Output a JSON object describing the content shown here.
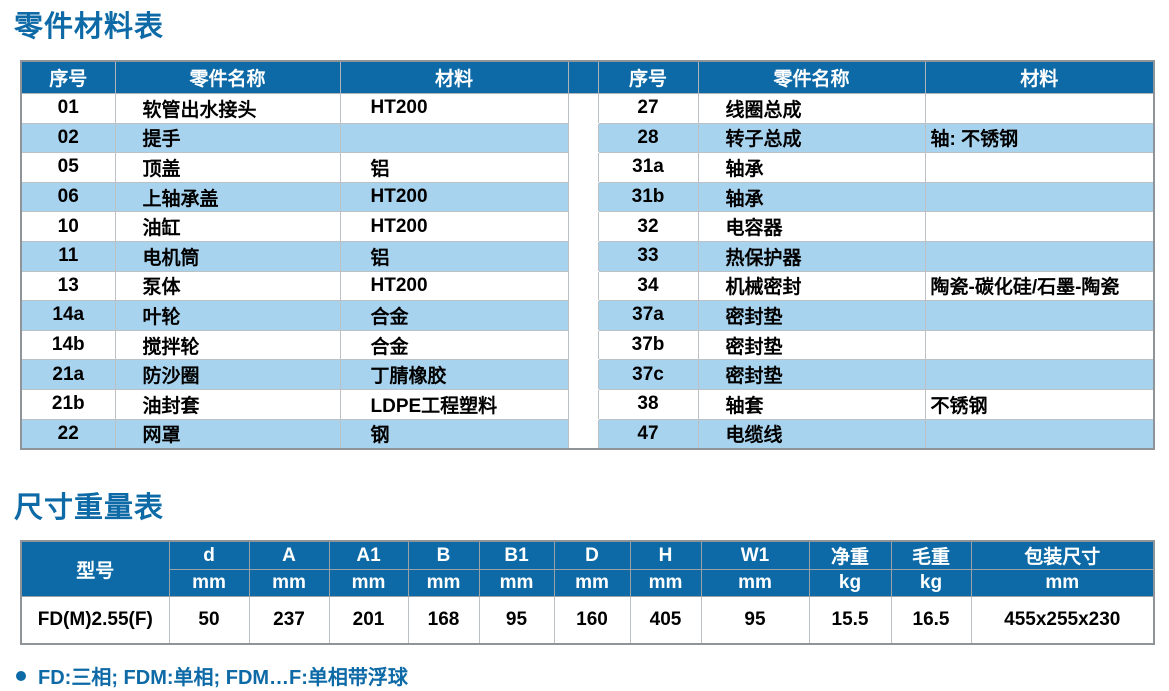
{
  "colors": {
    "accent_blue": "#0d6aa6",
    "stripe_blue": "#a8d3ee",
    "header_text": "#ffffff",
    "body_text": "#000000"
  },
  "parts_table": {
    "title": "零件材料表",
    "headers": {
      "no": "序号",
      "name": "零件名称",
      "material": "材料"
    },
    "left_rows": [
      {
        "no": "01",
        "name": "软管出水接头",
        "material": "HT200"
      },
      {
        "no": "02",
        "name": "提手",
        "material": ""
      },
      {
        "no": "05",
        "name": "顶盖",
        "material": "铝"
      },
      {
        "no": "06",
        "name": "上轴承盖",
        "material": "HT200"
      },
      {
        "no": "10",
        "name": "油缸",
        "material": "HT200"
      },
      {
        "no": "11",
        "name": "电机筒",
        "material": "铝"
      },
      {
        "no": "13",
        "name": "泵体",
        "material": "HT200"
      },
      {
        "no": "14a",
        "name": "叶轮",
        "material": "合金"
      },
      {
        "no": "14b",
        "name": "搅拌轮",
        "material": "合金"
      },
      {
        "no": "21a",
        "name": "防沙圈",
        "material": "丁腈橡胶"
      },
      {
        "no": "21b",
        "name": "油封套",
        "material": "LDPE工程塑料"
      },
      {
        "no": "22",
        "name": "网罩",
        "material": "钢"
      }
    ],
    "right_rows": [
      {
        "no": "27",
        "name": "线圈总成",
        "material": ""
      },
      {
        "no": "28",
        "name": "转子总成",
        "material": "轴: 不锈钢"
      },
      {
        "no": "31a",
        "name": "轴承",
        "material": ""
      },
      {
        "no": "31b",
        "name": "轴承",
        "material": ""
      },
      {
        "no": "32",
        "name": "电容器",
        "material": ""
      },
      {
        "no": "33",
        "name": "热保护器",
        "material": ""
      },
      {
        "no": "34",
        "name": "机械密封",
        "material": "陶瓷-碳化硅/石墨-陶瓷"
      },
      {
        "no": "37a",
        "name": "密封垫",
        "material": ""
      },
      {
        "no": "37b",
        "name": "密封垫",
        "material": ""
      },
      {
        "no": "37c",
        "name": "密封垫",
        "material": ""
      },
      {
        "no": "38",
        "name": "轴套",
        "material": "不锈钢"
      },
      {
        "no": "47",
        "name": "电缆线",
        "material": ""
      }
    ]
  },
  "dims_table": {
    "title": "尺寸重量表",
    "model_header": "型号",
    "columns": [
      {
        "label": "d",
        "unit": "mm"
      },
      {
        "label": "A",
        "unit": "mm"
      },
      {
        "label": "A1",
        "unit": "mm"
      },
      {
        "label": "B",
        "unit": "mm"
      },
      {
        "label": "B1",
        "unit": "mm"
      },
      {
        "label": "D",
        "unit": "mm"
      },
      {
        "label": "H",
        "unit": "mm"
      },
      {
        "label": "W1",
        "unit": "mm"
      },
      {
        "label": "净重",
        "unit": "kg"
      },
      {
        "label": "毛重",
        "unit": "kg"
      },
      {
        "label": "包装尺寸",
        "unit": "mm"
      }
    ],
    "rows": [
      {
        "model": "FD(M)2.55(F)",
        "values": [
          "50",
          "237",
          "201",
          "168",
          "95",
          "160",
          "405",
          "95",
          "15.5",
          "16.5",
          "455x255x230"
        ]
      }
    ]
  },
  "footnote": "FD:三相; FDM:单相; FDM…F:单相带浮球"
}
